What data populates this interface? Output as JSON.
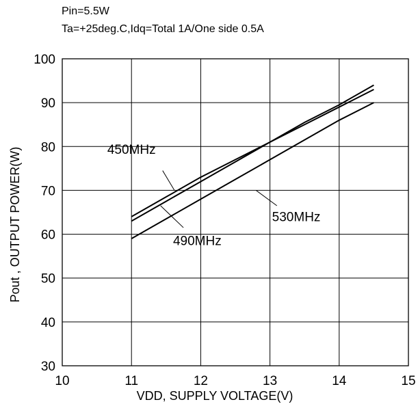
{
  "chart_data": {
    "type": "line",
    "conditions": [
      "Pin=5.5W",
      "Ta=+25deg.C,Idq=Total 1A/One side 0.5A"
    ],
    "xlabel": "VDD, SUPPLY VOLTAGE(V)",
    "ylabel": "Pout , OUTPUT POWER(W)",
    "xlim": [
      10,
      15
    ],
    "ylim": [
      30,
      100
    ],
    "xticks": [
      10,
      11,
      12,
      13,
      14,
      15
    ],
    "yticks": [
      30,
      40,
      50,
      60,
      70,
      80,
      90,
      100
    ],
    "grid": true,
    "series": [
      {
        "name": "450MHz",
        "x": [
          11,
          11.5,
          12,
          12.5,
          13,
          13.5,
          14,
          14.5
        ],
        "y": [
          64,
          68.5,
          73,
          77,
          81,
          85,
          89,
          93
        ]
      },
      {
        "name": "490MHz",
        "x": [
          11,
          11.5,
          12,
          12.5,
          13,
          13.5,
          14,
          14.5
        ],
        "y": [
          63,
          67.5,
          72,
          76.5,
          81,
          85.5,
          89.5,
          94
        ]
      },
      {
        "name": "530MHz",
        "x": [
          11,
          11.5,
          12,
          12.5,
          13,
          13.5,
          14,
          14.5
        ],
        "y": [
          59,
          63.5,
          68,
          72.5,
          77,
          81.5,
          86,
          90
        ]
      }
    ]
  }
}
